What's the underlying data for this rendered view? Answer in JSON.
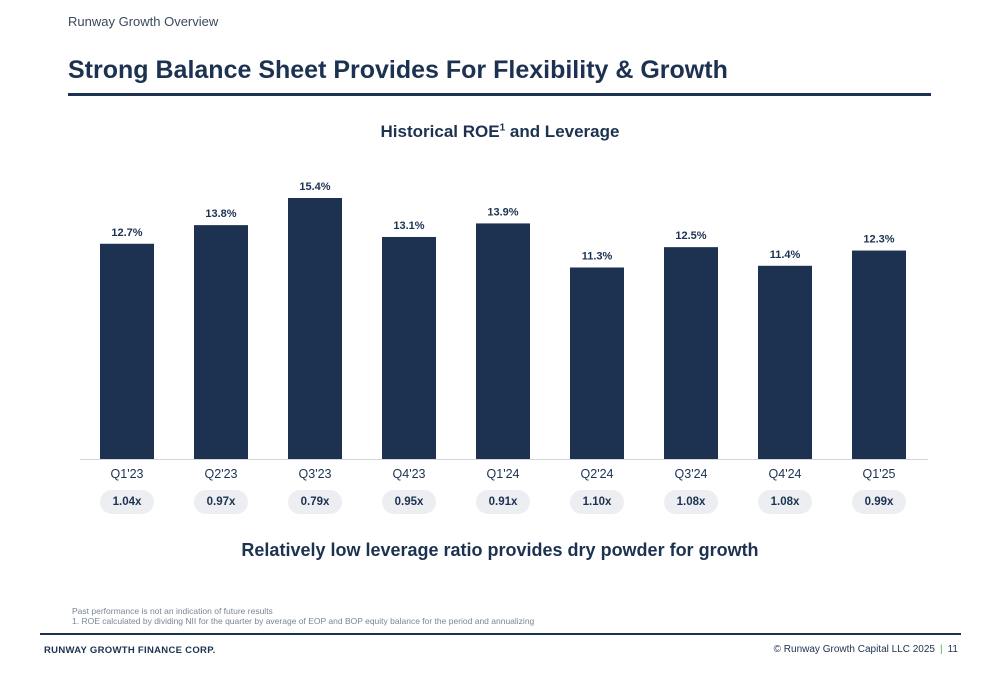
{
  "header": {
    "section_label": "Runway Growth Overview",
    "title": "Strong Balance Sheet Provides For Flexibility & Growth"
  },
  "colors": {
    "bar": "#1c3250",
    "accent": "#4caf50",
    "pill_bg": "#eceef2"
  },
  "chart_data": {
    "type": "bar",
    "title": "Historical ROE",
    "title_superscript": "1",
    "title_suffix": " and Leverage",
    "categories": [
      "Q1'23",
      "Q2'23",
      "Q3'23",
      "Q4'23",
      "Q1'24",
      "Q2'24",
      "Q3'24",
      "Q4'24",
      "Q1'25"
    ],
    "values": [
      12.7,
      13.8,
      15.4,
      13.1,
      13.9,
      11.3,
      12.5,
      11.4,
      12.3
    ],
    "value_labels": [
      "12.7%",
      "13.8%",
      "15.4%",
      "13.1%",
      "13.9%",
      "11.3%",
      "12.5%",
      "11.4%",
      "12.3%"
    ],
    "leverage_labels": [
      "1.04x",
      "0.97x",
      "0.79x",
      "0.95x",
      "0.91x",
      "1.10x",
      "1.08x",
      "1.08x",
      "0.99x"
    ],
    "leverage": [
      1.04,
      0.97,
      0.79,
      0.95,
      0.91,
      1.1,
      1.08,
      1.08,
      0.99
    ],
    "ylim": [
      0,
      15.4
    ],
    "grid": false,
    "legend": "none"
  },
  "tagline": "Relatively low leverage ratio provides dry powder for growth",
  "footnotes": {
    "disclaimer": "Past performance is not an indication of future results",
    "note1": "1.   ROE calculated by dividing NII for the quarter by average of EOP and BOP equity balance for the period and annualizing"
  },
  "footer": {
    "company": "RUNWAY GROWTH FINANCE CORP.",
    "copyright": "© Runway Growth Capital LLC 2025",
    "page_number": "11"
  }
}
